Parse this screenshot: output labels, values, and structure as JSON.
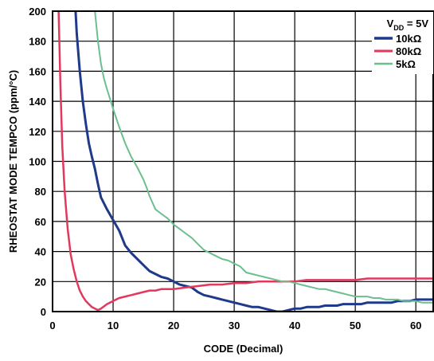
{
  "chart_data": {
    "type": "line",
    "title": "",
    "xlabel": "CODE (Decimal)",
    "ylabel": "RHEOSTAT MODE TEMPCO (ppm/°C)",
    "xlim": [
      0,
      63
    ],
    "ylim": [
      0,
      200
    ],
    "xticks": [
      0,
      10,
      20,
      30,
      40,
      50,
      60
    ],
    "yticks": [
      0,
      20,
      40,
      60,
      80,
      100,
      120,
      140,
      160,
      180,
      200
    ],
    "grid": true,
    "legend": {
      "placement": "top-right",
      "header_main": "V",
      "header_sub": "DD",
      "header_tail": " = 5V"
    },
    "series": [
      {
        "name": "10kΩ",
        "color": "#1f3a8a",
        "width": 3,
        "x": [
          3.8,
          4,
          4.5,
          5,
          5.5,
          6,
          6.5,
          7,
          7.5,
          8,
          9,
          10,
          11,
          12,
          13,
          14,
          15,
          16,
          17,
          18,
          19,
          20,
          21,
          22,
          23,
          24,
          25,
          26,
          27,
          28,
          29,
          30,
          31,
          32,
          33,
          34,
          35,
          36,
          37,
          38,
          39,
          40,
          41,
          42,
          43,
          44,
          45,
          46,
          47,
          48,
          49,
          50,
          51,
          52,
          53,
          54,
          55,
          56,
          57,
          58,
          59,
          60,
          61,
          62,
          63
        ],
        "y": [
          200,
          185,
          160,
          140,
          125,
          112,
          103,
          95,
          85,
          76,
          68,
          61,
          54,
          44,
          39,
          35,
          31,
          27,
          25,
          23,
          22,
          20,
          18,
          17,
          16,
          13,
          11,
          10,
          9,
          8,
          7,
          6,
          5,
          4,
          3,
          3,
          2,
          1,
          0,
          0,
          1,
          2,
          2,
          3,
          3,
          3,
          4,
          4,
          4,
          5,
          5,
          5,
          5,
          6,
          6,
          6,
          6,
          6,
          7,
          7,
          7,
          8,
          8,
          8,
          8
        ]
      },
      {
        "name": "80kΩ",
        "color": "#e2385e",
        "width": 2.5,
        "x": [
          1,
          1.3,
          1.6,
          2,
          2.5,
          3,
          3.5,
          4,
          4.5,
          5,
          5.5,
          6,
          6.5,
          7,
          7.5,
          8,
          9,
          10,
          11,
          12,
          13,
          14,
          15,
          16,
          17,
          18,
          19,
          20,
          22,
          24,
          26,
          28,
          30,
          32,
          34,
          36,
          38,
          40,
          42,
          44,
          46,
          48,
          50,
          52,
          54,
          56,
          58,
          60,
          63
        ],
        "y": [
          200,
          150,
          110,
          80,
          55,
          38,
          28,
          20,
          14,
          10,
          7,
          5,
          3,
          2,
          1,
          2,
          5,
          7,
          9,
          10,
          11,
          12,
          13,
          14,
          14,
          15,
          15,
          15,
          16,
          17,
          18,
          18,
          19,
          19,
          20,
          20,
          20,
          20,
          21,
          21,
          21,
          21,
          21,
          22,
          22,
          22,
          22,
          22,
          22
        ]
      },
      {
        "name": "5kΩ",
        "color": "#6cbf8e",
        "width": 2,
        "x": [
          7,
          7.5,
          8,
          8.5,
          9,
          10,
          11,
          12,
          13,
          14,
          15,
          15.5,
          16,
          17,
          18,
          19,
          20,
          21,
          22,
          23,
          24,
          25,
          26,
          27,
          28,
          29,
          30,
          31,
          32,
          33,
          34,
          35,
          36,
          37,
          38,
          39,
          40,
          41,
          42,
          43,
          44,
          45,
          46,
          47,
          48,
          49,
          50,
          51,
          52,
          53,
          54,
          55,
          56,
          57,
          58,
          59,
          60,
          61,
          62,
          63
        ],
        "y": [
          200,
          180,
          165,
          155,
          148,
          135,
          123,
          112,
          103,
          96,
          88,
          83,
          77,
          68,
          65,
          62,
          58,
          55,
          52,
          49,
          45,
          41,
          39,
          37,
          35,
          34,
          32,
          30,
          26,
          25,
          24,
          23,
          22,
          21,
          20,
          20,
          19,
          18,
          17,
          16,
          15,
          15,
          14,
          13,
          12,
          11,
          10,
          10,
          10,
          9,
          9,
          8,
          8,
          8,
          7,
          7,
          7,
          6,
          6,
          6
        ]
      }
    ]
  }
}
